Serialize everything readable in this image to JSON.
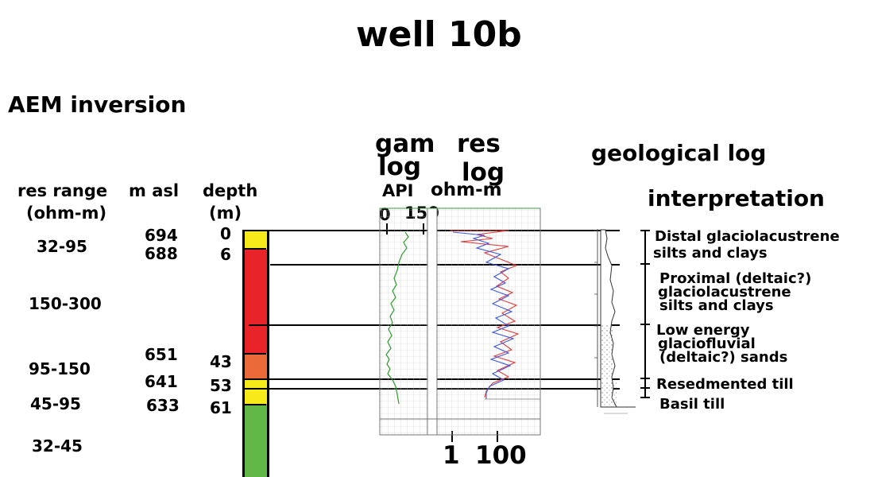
{
  "title": "well 10b",
  "aem": {
    "heading": "AEM inversion",
    "col_res_range": [
      "res range",
      "(ohm-m)"
    ],
    "col_masl": "m asl",
    "col_depth": [
      "depth",
      "(m)"
    ],
    "res_ranges": [
      "32-95",
      "150-300",
      "95-150",
      "45-95",
      "32-45"
    ],
    "masl_values": [
      "694",
      "688",
      "651",
      "641",
      "633"
    ],
    "depth_values": [
      "0",
      "6",
      "43",
      "53",
      "61"
    ],
    "layer_colors": [
      "#f7ea1a",
      "#e8242a",
      "#ea6a3a",
      "#f7ea1a",
      "#62b846"
    ]
  },
  "gamma_log": {
    "title": [
      "gam",
      "log"
    ],
    "unit": "API",
    "scale_min": "0",
    "scale_max": "150"
  },
  "res_log": {
    "title": [
      "res",
      "log"
    ],
    "unit": "ohm-m",
    "scale_min": "1",
    "scale_max": "100"
  },
  "geological_log": {
    "heading": "geological log"
  },
  "interpretation": {
    "heading": "interpretation",
    "units": [
      [
        "Distal glaciolacustrene",
        "silts and clays"
      ],
      [
        "Proximal (deltaic?)",
        "glaciolacustrene",
        "silts and clays"
      ],
      [
        "Low energy",
        "glaciofluvial",
        "(deltaic?) sands"
      ],
      [
        "Resedmented till"
      ],
      [
        "Basil till"
      ]
    ]
  }
}
